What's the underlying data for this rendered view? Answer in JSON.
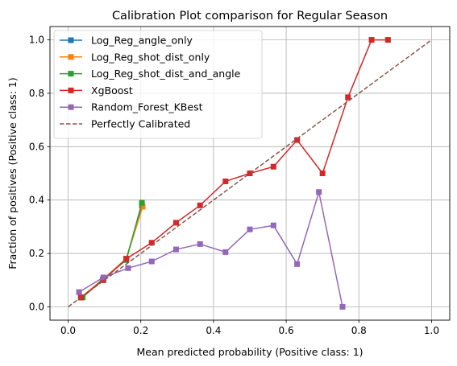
{
  "chart_data": {
    "type": "line",
    "title": "Calibration Plot comparison for Regular Season",
    "xlabel": "Mean predicted probability (Positive class: 1)",
    "ylabel": "Fraction of positives (Positive class: 1)",
    "xlim": [
      -0.05,
      1.05
    ],
    "ylim": [
      -0.05,
      1.05
    ],
    "grid": true,
    "legend_position": "top-left",
    "xticks": [
      "0.0",
      "0.2",
      "0.4",
      "0.6",
      "0.8",
      "1.0"
    ],
    "yticks": [
      "0.0",
      "0.2",
      "0.4",
      "0.6",
      "0.8",
      "1.0"
    ],
    "series": [
      {
        "name": "Log_Reg_angle_only",
        "color": "#1f77b4",
        "marker": "square",
        "x": [
          0.035,
          0.095,
          0.16,
          0.203
        ],
        "y": [
          0.035,
          0.1,
          0.18,
          0.38
        ]
      },
      {
        "name": "Log_Reg_shot_dist_only",
        "color": "#ff7f0e",
        "marker": "square",
        "x": [
          0.035,
          0.097,
          0.16,
          0.205
        ],
        "y": [
          0.035,
          0.105,
          0.18,
          0.375
        ]
      },
      {
        "name": "Log_Reg_shot_dist_and_angle",
        "color": "#2ca02c",
        "marker": "square",
        "x": [
          0.04,
          0.097,
          0.16,
          0.203
        ],
        "y": [
          0.035,
          0.105,
          0.175,
          0.39
        ]
      },
      {
        "name": "XgBoost",
        "color": "#d62728",
        "marker": "square",
        "x": [
          0.035,
          0.097,
          0.16,
          0.23,
          0.297,
          0.363,
          0.433,
          0.5,
          0.565,
          0.63,
          0.7,
          0.77,
          0.835,
          0.88
        ],
        "y": [
          0.035,
          0.1,
          0.18,
          0.24,
          0.315,
          0.38,
          0.47,
          0.5,
          0.525,
          0.625,
          0.5,
          0.785,
          1.0,
          1.0
        ]
      },
      {
        "name": "Random_Forest_KBest",
        "color": "#9467bd",
        "marker": "square",
        "x": [
          0.03,
          0.097,
          0.165,
          0.23,
          0.297,
          0.363,
          0.433,
          0.5,
          0.565,
          0.63,
          0.69,
          0.755
        ],
        "y": [
          0.055,
          0.11,
          0.145,
          0.17,
          0.215,
          0.235,
          0.205,
          0.29,
          0.305,
          0.16,
          0.43,
          0.0
        ]
      },
      {
        "name": "Perfectly Calibrated",
        "color": "#8c564b",
        "marker": "none",
        "dash": true,
        "x": [
          0.0,
          1.0
        ],
        "y": [
          0.0,
          1.0
        ]
      }
    ]
  }
}
